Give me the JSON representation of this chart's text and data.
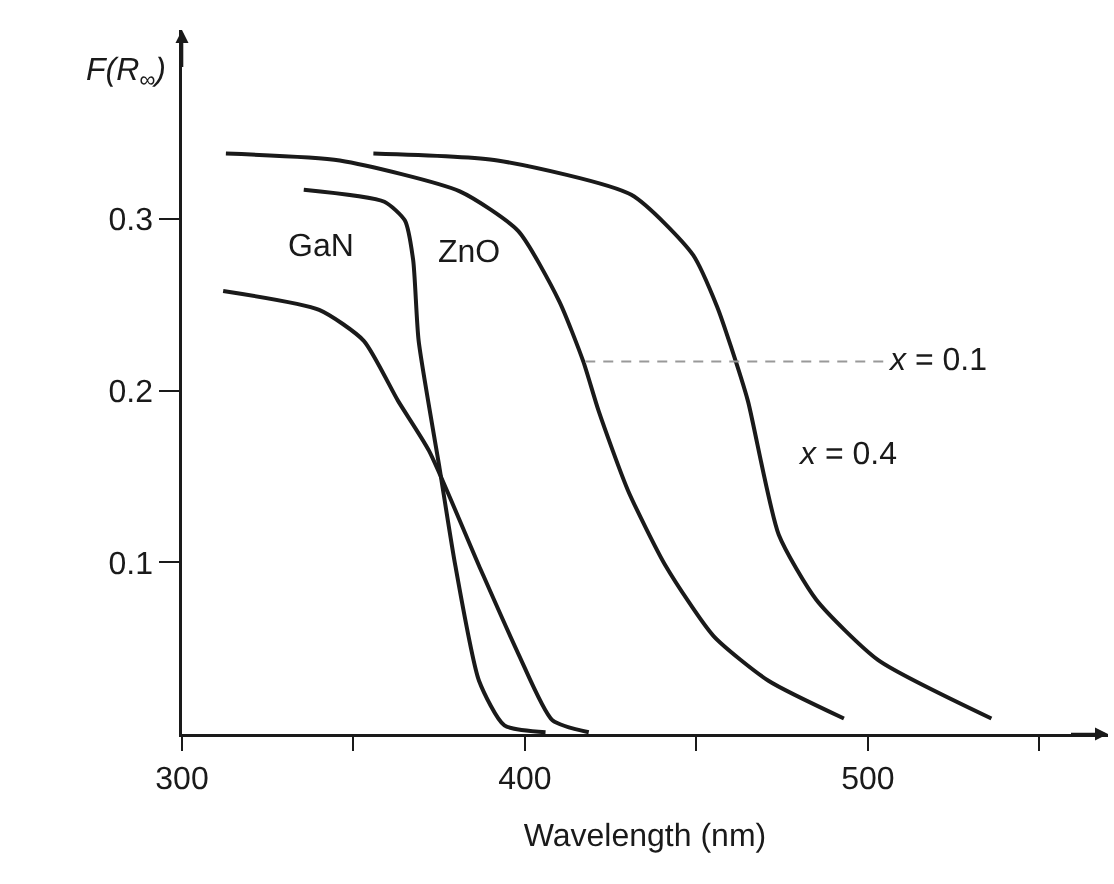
{
  "chart_data": {
    "type": "line",
    "xlabel": "Wavelength (nm)",
    "ylabel": "F(R$_{∞}$)",
    "xlim": [
      300,
      570
    ],
    "ylim": [
      0,
      0.41
    ],
    "xticks": [
      300,
      {
        "value": 350,
        "label": null
      },
      400,
      {
        "value": 450,
        "label": null
      },
      500,
      {
        "value": 550,
        "label": null
      }
    ],
    "yticks": [
      0.1,
      0.2,
      0.3
    ],
    "grid": false,
    "legend": false,
    "marker": "none",
    "line_style": "solid",
    "series": [
      {
        "name": "GaN",
        "color": "#1a1a1a",
        "x": [
          312,
          340,
          353,
          363,
          372,
          386.6,
          398,
          408,
          418.6
        ],
        "values": [
          0.258,
          0.247,
          0.229,
          0.194,
          0.165,
          0.098,
          0.047,
          0.008,
          0.001
        ]
      },
      {
        "name": "ZnO",
        "color": "#1a1a1a",
        "x": [
          335.5,
          359,
          365,
          367.4,
          369,
          375,
          379.7,
          386.6,
          394,
          406
        ],
        "values": [
          0.317,
          0.31,
          0.299,
          0.276,
          0.229,
          0.156,
          0.098,
          0.031,
          0.005,
          0.001
        ]
      },
      {
        "name": "x = 0.1",
        "color": "#1a1a1a",
        "x": [
          312.8,
          346,
          381,
          398,
          410,
          417,
          421.5,
          430,
          441,
          455,
          471,
          493
        ],
        "values": [
          0.338,
          0.334,
          0.316,
          0.293,
          0.252,
          0.217,
          0.188,
          0.142,
          0.098,
          0.057,
          0.031,
          0.009
        ]
      },
      {
        "name": "x = 0.4",
        "color": "#1a1a1a",
        "x": [
          355.8,
          392,
          431,
          449,
          456,
          460,
          465,
          474,
          485,
          503,
          536
        ],
        "values": [
          0.338,
          0.334,
          0.314,
          0.279,
          0.249,
          0.226,
          0.194,
          0.116,
          0.078,
          0.043,
          0.009
        ]
      }
    ]
  }
}
